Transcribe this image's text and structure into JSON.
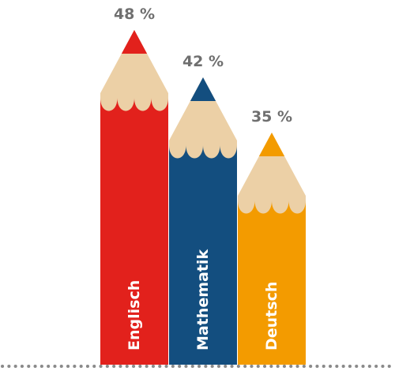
{
  "chart_data": {
    "type": "bar",
    "style": "pencil",
    "categories": [
      "Englisch",
      "Mathematik",
      "Deutsch"
    ],
    "values": [
      48,
      42,
      35
    ],
    "value_labels": [
      "48 %",
      "42 %",
      "35 %"
    ],
    "unit": "%",
    "colors": [
      "#e2211c",
      "#134e7f",
      "#f39b00"
    ],
    "wood_color": "#ecd0a6",
    "label_color": "#6f6f6f",
    "baseline_style": "dotted",
    "baseline_color": "#8a8a8a",
    "ylim": [
      0,
      48
    ],
    "title": "",
    "xlabel": "",
    "ylabel": ""
  }
}
